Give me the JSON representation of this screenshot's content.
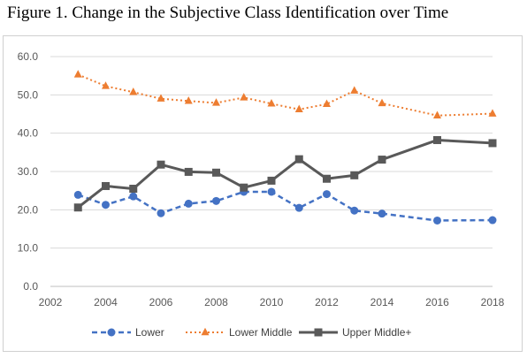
{
  "figure_title": "Figure 1. Change in the Subjective Class Identification over Time",
  "chart_data": {
    "type": "line",
    "title": "",
    "xlabel": "",
    "ylabel": "",
    "xlim": [
      2002,
      2018
    ],
    "ylim": [
      0,
      60
    ],
    "x_ticks": [
      2002,
      2004,
      2006,
      2008,
      2010,
      2012,
      2014,
      2016,
      2018
    ],
    "y_ticks": [
      0,
      10,
      20,
      30,
      40,
      50,
      60
    ],
    "y_tick_labels": [
      "0.0",
      "10.0",
      "20.0",
      "30.0",
      "40.0",
      "50.0",
      "60.0"
    ],
    "x_tick_labels": [
      "2002",
      "2004",
      "2006",
      "2008",
      "2010",
      "2012",
      "2014",
      "2016",
      "2018"
    ],
    "grid": "horizontal",
    "legend_position": "bottom",
    "series": [
      {
        "name": "Lower",
        "color": "#4472C4",
        "line_style": "dashed",
        "marker": "circle",
        "points": [
          [
            2003,
            23.9
          ],
          [
            2004,
            21.3
          ],
          [
            2005,
            23.5
          ],
          [
            2006,
            19.1
          ],
          [
            2007,
            21.6
          ],
          [
            2008,
            22.3
          ],
          [
            2009,
            24.7
          ],
          [
            2010,
            24.7
          ],
          [
            2011,
            20.5
          ],
          [
            2012,
            24.1
          ],
          [
            2013,
            19.8
          ],
          [
            2014,
            19.0
          ],
          [
            2016,
            17.2
          ],
          [
            2018,
            17.3
          ]
        ]
      },
      {
        "name": "Lower Middle",
        "color": "#ED7D31",
        "line_style": "dotted",
        "marker": "triangle",
        "points": [
          [
            2003,
            55.3
          ],
          [
            2004,
            52.3
          ],
          [
            2005,
            50.7
          ],
          [
            2006,
            49.0
          ],
          [
            2007,
            48.4
          ],
          [
            2008,
            47.9
          ],
          [
            2009,
            49.3
          ],
          [
            2010,
            47.7
          ],
          [
            2011,
            46.2
          ],
          [
            2012,
            47.6
          ],
          [
            2013,
            51.1
          ],
          [
            2014,
            47.8
          ],
          [
            2016,
            44.6
          ],
          [
            2018,
            45.1
          ]
        ]
      },
      {
        "name": "Upper Middle+",
        "color": "#595959",
        "line_style": "solid",
        "marker": "square",
        "points": [
          [
            2003,
            20.6
          ],
          [
            2004,
            26.2
          ],
          [
            2005,
            25.5
          ],
          [
            2006,
            31.8
          ],
          [
            2007,
            29.9
          ],
          [
            2008,
            29.7
          ],
          [
            2009,
            25.8
          ],
          [
            2010,
            27.6
          ],
          [
            2011,
            33.2
          ],
          [
            2012,
            28.1
          ],
          [
            2013,
            29.0
          ],
          [
            2014,
            33.1
          ],
          [
            2016,
            38.2
          ],
          [
            2018,
            37.4
          ]
        ]
      }
    ]
  }
}
